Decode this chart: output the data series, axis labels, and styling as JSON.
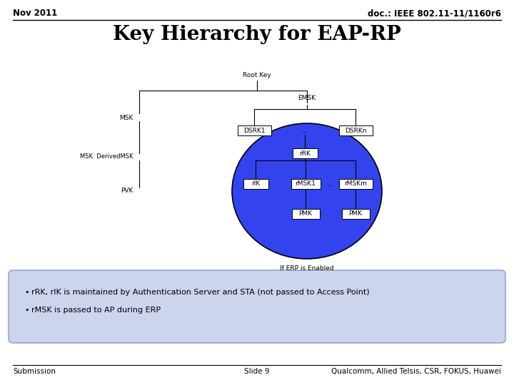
{
  "title": "Key Hierarchy for EAP-RP",
  "header_left": "Nov 2011",
  "header_right": "doc.: IEEE 802.11-11/1160r6",
  "footer_left": "Submission",
  "footer_center": "Slide 9",
  "footer_right": "Qualcomm, Allied Telsis, CSR, FOKUS, Huawei",
  "bullet1": "rRK, rIK is maintained by Authentication Server and STA (not passed to Access Point)",
  "bullet2": "rMSK is passed to AP during ERP",
  "bg_color": "#ffffff",
  "ellipse_color": "#3344ee",
  "box_color": "#ffffff",
  "note_box_bg": "#ccd4ee",
  "note_box_border": "#8899cc"
}
